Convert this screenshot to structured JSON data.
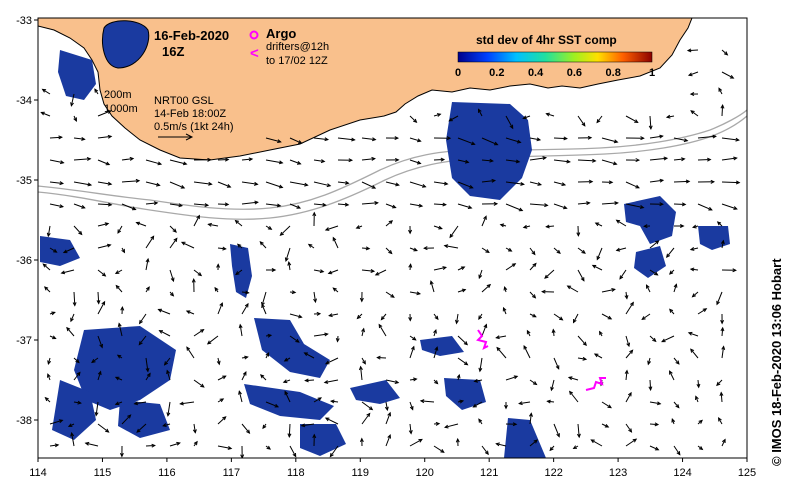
{
  "header": {
    "date": "16-Feb-2020",
    "time": "16Z",
    "argo_label": "Argo",
    "drifters_line1": "drifters@12h",
    "drifters_line2": "to 17/02 12Z",
    "drifter_symbol": "<"
  },
  "product": {
    "depth_1": "200m",
    "depth_2": "1000m",
    "name": "NRT00 GSL",
    "time": "14-Feb 18:00Z",
    "scale_label": "0.5m/s (1kt 24h)"
  },
  "colorbar": {
    "title": "std dev of 4hr SST comp",
    "ticks": [
      "0",
      "0.2",
      "0.4",
      "0.6",
      "0.8",
      "1"
    ]
  },
  "axes": {
    "x_ticks": [
      "114",
      "115",
      "116",
      "117",
      "118",
      "119",
      "120",
      "121",
      "122",
      "123",
      "124",
      "125"
    ],
    "y_ticks": [
      "-33",
      "-34",
      "-35",
      "-36",
      "-37",
      "-38"
    ]
  },
  "credit": "© IMOS 18-Feb-2020 13:06 Hobart",
  "colors": {
    "land": "#f9c08c",
    "sst_patch": "#1a3aa0",
    "drifter": "#ff00ff",
    "isobath": "#a9a9a9"
  }
}
